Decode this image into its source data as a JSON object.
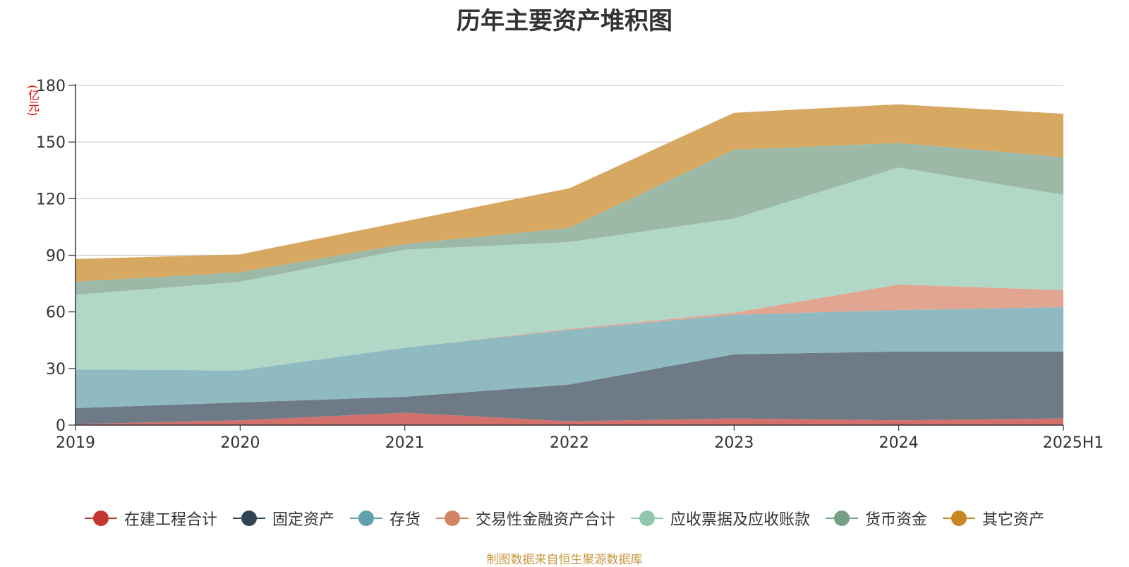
{
  "chart_data": {
    "type": "area",
    "stacked": true,
    "title": "历年主要资产堆积图",
    "unit": "(亿元)",
    "footer": "制图数据来自恒生聚源数据库",
    "categories": [
      "2019",
      "2020",
      "2021",
      "2022",
      "2023",
      "2024",
      "2025H1"
    ],
    "y_ticks": [
      "0",
      "30",
      "60",
      "90",
      "120",
      "150",
      "180"
    ],
    "ylim": [
      0,
      180
    ],
    "grid": true,
    "legend_position": "bottom",
    "series": [
      {
        "name": "在建工程合计",
        "color": "#c23531",
        "fill": "#d4706c",
        "values": [
          0.5,
          2.5,
          6.5,
          2.0,
          3.5,
          2.5,
          3.5
        ]
      },
      {
        "name": "固定资产",
        "color": "#2f4554",
        "fill": "#6e7b86",
        "values": [
          8.5,
          9.5,
          8.5,
          19.5,
          34.0,
          36.5,
          35.5
        ]
      },
      {
        "name": "存货",
        "color": "#61a0a8",
        "fill": "#90bac1",
        "values": [
          20.5,
          17.0,
          26.0,
          29.0,
          21.0,
          22.0,
          23.5
        ]
      },
      {
        "name": "交易性金融资产合计",
        "color": "#d48265",
        "fill": "#e2a592",
        "values": [
          0,
          0,
          0,
          0.5,
          1.0,
          13.5,
          9.0
        ]
      },
      {
        "name": "应收票据及应收账款",
        "color": "#91c7ae",
        "fill": "#b1d8c6",
        "values": [
          39.5,
          47.0,
          52.0,
          46.0,
          50.0,
          62.0,
          50.5
        ]
      },
      {
        "name": "货币资金",
        "color": "#749f83",
        "fill": "#9bb9a6",
        "values": [
          7.0,
          5.0,
          3.0,
          7.5,
          36.5,
          13.0,
          20.0
        ]
      },
      {
        "name": "其它资产",
        "color": "#ca8622",
        "fill": "#d6a862",
        "values": [
          12.0,
          9.5,
          12.0,
          21.0,
          19.5,
          20.5,
          23.0
        ]
      }
    ]
  }
}
